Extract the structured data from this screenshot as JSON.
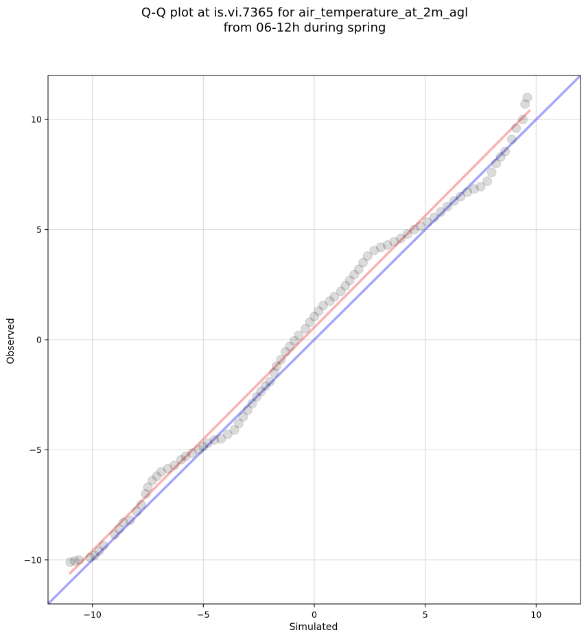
{
  "chart_data": {
    "type": "scatter",
    "title": "Q-Q plot at is.vi.7365 for air_temperature_at_2m_agl",
    "subtitle": "from 06-12h during spring",
    "xlabel": "Simulated",
    "ylabel": "Observed",
    "xlim": [
      -12,
      12
    ],
    "ylim": [
      -12,
      12
    ],
    "xticks": [
      -10,
      -5,
      0,
      5,
      10
    ],
    "yticks": [
      -10,
      -5,
      0,
      5,
      10
    ],
    "xtick_labels": [
      "−10",
      "−5",
      "0",
      "5",
      "10"
    ],
    "ytick_labels": [
      "−10",
      "−5",
      "0",
      "5",
      "10"
    ],
    "grid": true,
    "colors": {
      "points": "#000000",
      "identity_line": "#0000ee",
      "fit_line": "#ee2222",
      "grid": "#dddddd"
    },
    "lines": [
      {
        "kind": "identity",
        "color": "blue",
        "x": [
          -12,
          12
        ],
        "y": [
          -12,
          12
        ]
      },
      {
        "kind": "fit",
        "color": "red",
        "x": [
          -11,
          9.7
        ],
        "y": [
          -10.6,
          10.4
        ]
      }
    ],
    "points": [
      [
        -11.0,
        -10.1
      ],
      [
        -10.8,
        -10.05
      ],
      [
        -10.6,
        -10.0
      ],
      [
        -10.1,
        -9.9
      ],
      [
        -9.9,
        -9.8
      ],
      [
        -9.7,
        -9.6
      ],
      [
        -9.5,
        -9.35
      ],
      [
        -9.0,
        -8.85
      ],
      [
        -8.8,
        -8.6
      ],
      [
        -8.6,
        -8.3
      ],
      [
        -8.3,
        -8.2
      ],
      [
        -8.0,
        -7.8
      ],
      [
        -7.8,
        -7.5
      ],
      [
        -7.6,
        -7.0
      ],
      [
        -7.5,
        -6.7
      ],
      [
        -7.3,
        -6.4
      ],
      [
        -7.1,
        -6.2
      ],
      [
        -6.9,
        -6.0
      ],
      [
        -6.6,
        -5.85
      ],
      [
        -6.3,
        -5.7
      ],
      [
        -6.0,
        -5.45
      ],
      [
        -5.8,
        -5.3
      ],
      [
        -5.5,
        -5.15
      ],
      [
        -5.2,
        -5.0
      ],
      [
        -5.0,
        -4.85
      ],
      [
        -4.8,
        -4.7
      ],
      [
        -4.5,
        -4.55
      ],
      [
        -4.2,
        -4.5
      ],
      [
        -3.9,
        -4.3
      ],
      [
        -3.6,
        -4.1
      ],
      [
        -3.4,
        -3.8
      ],
      [
        -3.2,
        -3.5
      ],
      [
        -3.0,
        -3.2
      ],
      [
        -2.8,
        -2.9
      ],
      [
        -2.6,
        -2.6
      ],
      [
        -2.4,
        -2.35
      ],
      [
        -2.2,
        -2.1
      ],
      [
        -2.0,
        -1.9
      ],
      [
        -1.8,
        -1.5
      ],
      [
        -1.7,
        -1.2
      ],
      [
        -1.5,
        -0.9
      ],
      [
        -1.3,
        -0.55
      ],
      [
        -1.1,
        -0.3
      ],
      [
        -0.9,
        -0.05
      ],
      [
        -0.7,
        0.2
      ],
      [
        -0.4,
        0.5
      ],
      [
        -0.2,
        0.8
      ],
      [
        0.0,
        1.05
      ],
      [
        0.2,
        1.3
      ],
      [
        0.4,
        1.55
      ],
      [
        0.7,
        1.75
      ],
      [
        0.9,
        1.95
      ],
      [
        1.2,
        2.2
      ],
      [
        1.4,
        2.45
      ],
      [
        1.6,
        2.7
      ],
      [
        1.8,
        2.95
      ],
      [
        2.0,
        3.2
      ],
      [
        2.2,
        3.5
      ],
      [
        2.4,
        3.8
      ],
      [
        2.7,
        4.05
      ],
      [
        3.0,
        4.2
      ],
      [
        3.3,
        4.3
      ],
      [
        3.6,
        4.45
      ],
      [
        3.9,
        4.6
      ],
      [
        4.2,
        4.8
      ],
      [
        4.5,
        5.0
      ],
      [
        4.8,
        5.15
      ],
      [
        5.1,
        5.35
      ],
      [
        5.4,
        5.55
      ],
      [
        5.7,
        5.8
      ],
      [
        6.0,
        6.05
      ],
      [
        6.3,
        6.3
      ],
      [
        6.6,
        6.5
      ],
      [
        6.9,
        6.7
      ],
      [
        7.2,
        6.85
      ],
      [
        7.5,
        6.95
      ],
      [
        7.8,
        7.2
      ],
      [
        8.0,
        7.6
      ],
      [
        8.2,
        8.0
      ],
      [
        8.4,
        8.3
      ],
      [
        8.6,
        8.55
      ],
      [
        8.9,
        9.1
      ],
      [
        9.1,
        9.6
      ],
      [
        9.4,
        10.0
      ],
      [
        9.5,
        10.7
      ],
      [
        9.6,
        11.0
      ]
    ]
  }
}
